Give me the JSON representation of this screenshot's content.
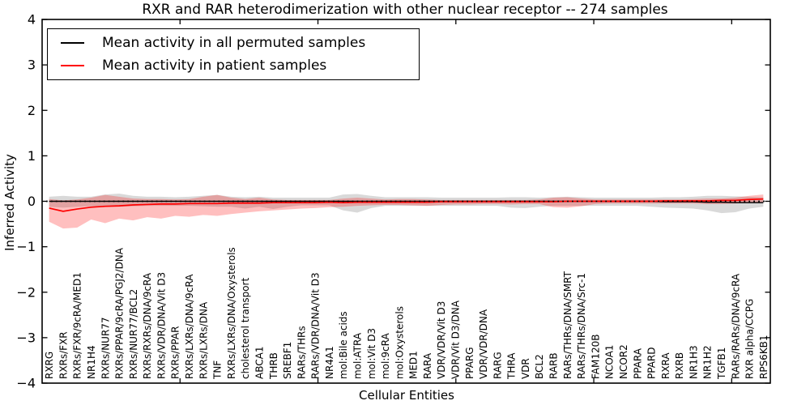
{
  "figure": {
    "title": "RXR and RAR heterodimerization with other nuclear receptor -- 274 samples",
    "xlabel": "Cellular Entities",
    "ylabel": "Inferred Activity"
  },
  "legend": {
    "items": [
      {
        "label": "Mean activity in all permuted samples",
        "color": "#000000"
      },
      {
        "label": "Mean activity in patient samples",
        "color": "#ff0000"
      }
    ]
  },
  "chart_data": {
    "type": "line",
    "title": "RXR and RAR heterodimerization with other nuclear receptor -- 274 samples",
    "xlabel": "Cellular Entities",
    "ylabel": "Inferred Activity",
    "ylim": [
      -4,
      4
    ],
    "yticks": [
      4,
      3,
      2,
      1,
      0,
      -1,
      -2,
      -3,
      -4
    ],
    "x_major_ticks": [
      10,
      20,
      30,
      40,
      50
    ],
    "x_axis_range": [
      0,
      52.8
    ],
    "grid": false,
    "legend_position": "upper left",
    "zero_reference_line": true,
    "categories": [
      "RXRG",
      "RXRs/FXR",
      "RXRs/FXR/9cRA/MED1",
      "NR1H4",
      "RXRs/NUR77",
      "RXRs/PPAR/9cRA/PGJ2/DNA",
      "RXRs/NUR77/BCL2",
      "RXRs/RXRs/DNA/9cRA",
      "RXRs/VDR/DNA/Vit D3",
      "RXRs/PPAR",
      "RXRs/LXRs/DNA/9cRA",
      "RXRs/LXRs/DNA",
      "TNF",
      "RXRs/LXRs/DNA/Oxysterols",
      "cholesterol transport",
      "ABCA1",
      "THRB",
      "SREBF1",
      "RARs/THRs",
      "RARs/VDR/DNA/Vit D3",
      "NR4A1",
      "mol:Bile acids",
      "mol:ATRA",
      "mol:Vit D3",
      "mol:9cRA",
      "mol:Oxysterols",
      "MED1",
      "RARA",
      "VDR/VDR/Vit D3",
      "VDR/Vit D3/DNA",
      "PPARG",
      "VDR/VDR/DNA",
      "RARG",
      "THRA",
      "VDR",
      "BCL2",
      "RARB",
      "RARs/THRs/DNA/SMRT",
      "RARs/THRs/DNA/Src-1",
      "FAM120B",
      "NCOA1",
      "NCOR2",
      "PPARA",
      "PPARD",
      "RXRA",
      "RXRB",
      "NR1H3",
      "NR1H2",
      "TGFB1",
      "RARs/RARs/DNA/9cRA",
      "RXR alpha/CCPG",
      "RPS6KB1"
    ],
    "series": [
      {
        "name": "Mean activity in all permuted samples",
        "color": "#000000",
        "values": [
          0,
          0,
          0,
          0,
          0,
          0,
          0,
          0,
          0,
          0,
          0,
          0,
          0,
          0,
          0,
          0,
          0,
          0,
          0,
          0,
          0,
          0,
          0,
          0,
          0,
          0,
          0,
          0,
          0,
          0,
          0,
          0,
          0,
          0,
          0,
          0,
          0,
          0,
          0,
          0,
          0,
          0,
          0,
          0,
          -0.01,
          -0.01,
          -0.01,
          -0.02,
          -0.02,
          -0.03,
          -0.03,
          -0.03
        ]
      },
      {
        "name": "Mean activity in patient samples",
        "color": "#ff0000",
        "values": [
          -0.15,
          -0.22,
          -0.17,
          -0.13,
          -0.11,
          -0.1,
          -0.08,
          -0.07,
          -0.06,
          -0.06,
          -0.05,
          -0.05,
          -0.05,
          -0.04,
          -0.04,
          -0.04,
          -0.03,
          -0.03,
          -0.03,
          -0.03,
          -0.02,
          -0.03,
          -0.02,
          -0.02,
          -0.02,
          -0.02,
          -0.02,
          -0.02,
          -0.01,
          -0.01,
          -0.01,
          -0.01,
          -0.01,
          -0.01,
          -0.01,
          -0.01,
          -0.01,
          0,
          0,
          0,
          0,
          0,
          0,
          0,
          0.01,
          0.01,
          0.01,
          0.01,
          0.02,
          0.02,
          0.04,
          0.05
        ]
      }
    ],
    "bands": [
      {
        "name": "permuted samples std band",
        "color": "rgba(0,0,0,0.15)",
        "upper": [
          0.1,
          0.12,
          0.1,
          0.1,
          0.15,
          0.17,
          0.12,
          0.1,
          0.1,
          0.09,
          0.1,
          0.12,
          0.14,
          0.1,
          0.09,
          0.1,
          0.08,
          0.08,
          0.08,
          0.08,
          0.08,
          0.15,
          0.16,
          0.12,
          0.09,
          0.09,
          0.09,
          0.09,
          0.08,
          0.08,
          0.08,
          0.08,
          0.08,
          0.09,
          0.09,
          0.08,
          0.09,
          0.1,
          0.09,
          0.08,
          0.08,
          0.08,
          0.08,
          0.08,
          0.09,
          0.09,
          0.1,
          0.12,
          0.12,
          0.11,
          0.1,
          0.09
        ],
        "lower": [
          -0.12,
          -0.14,
          -0.12,
          -0.11,
          -0.12,
          -0.12,
          -0.11,
          -0.1,
          -0.1,
          -0.1,
          -0.1,
          -0.11,
          -0.12,
          -0.12,
          -0.16,
          -0.12,
          -0.17,
          -0.12,
          -0.09,
          -0.09,
          -0.09,
          -0.2,
          -0.25,
          -0.15,
          -0.1,
          -0.1,
          -0.1,
          -0.1,
          -0.1,
          -0.1,
          -0.1,
          -0.1,
          -0.1,
          -0.14,
          -0.15,
          -0.12,
          -0.1,
          -0.1,
          -0.1,
          -0.1,
          -0.1,
          -0.1,
          -0.1,
          -0.12,
          -0.14,
          -0.15,
          -0.16,
          -0.2,
          -0.26,
          -0.24,
          -0.16,
          -0.12
        ]
      },
      {
        "name": "patient samples std band",
        "color": "rgba(255,0,0,0.25)",
        "upper": [
          0.05,
          0.02,
          0.04,
          0.08,
          0.14,
          0.1,
          0.06,
          0.05,
          0.05,
          0.04,
          0.05,
          0.1,
          0.14,
          0.08,
          0.05,
          0.08,
          0.04,
          0.03,
          0.03,
          0.03,
          0.03,
          0.06,
          0.08,
          0.06,
          0.04,
          0.05,
          0.05,
          0.04,
          0.03,
          0.03,
          0.03,
          0.03,
          0.03,
          0.03,
          0.03,
          0.04,
          0.08,
          0.09,
          0.06,
          0.04,
          0.04,
          0.04,
          0.04,
          0.04,
          0.04,
          0.04,
          0.05,
          0.06,
          0.06,
          0.08,
          0.12,
          0.15
        ],
        "lower": [
          -0.45,
          -0.6,
          -0.58,
          -0.4,
          -0.48,
          -0.38,
          -0.42,
          -0.35,
          -0.38,
          -0.32,
          -0.34,
          -0.3,
          -0.32,
          -0.28,
          -0.25,
          -0.22,
          -0.2,
          -0.18,
          -0.16,
          -0.15,
          -0.13,
          -0.12,
          -0.1,
          -0.09,
          -0.08,
          -0.08,
          -0.09,
          -0.1,
          -0.08,
          -0.07,
          -0.07,
          -0.06,
          -0.06,
          -0.07,
          -0.06,
          -0.06,
          -0.13,
          -0.14,
          -0.11,
          -0.06,
          -0.05,
          -0.05,
          -0.05,
          -0.05,
          -0.05,
          -0.05,
          -0.05,
          -0.06,
          -0.06,
          -0.05,
          -0.03,
          -0.02
        ]
      }
    ]
  }
}
